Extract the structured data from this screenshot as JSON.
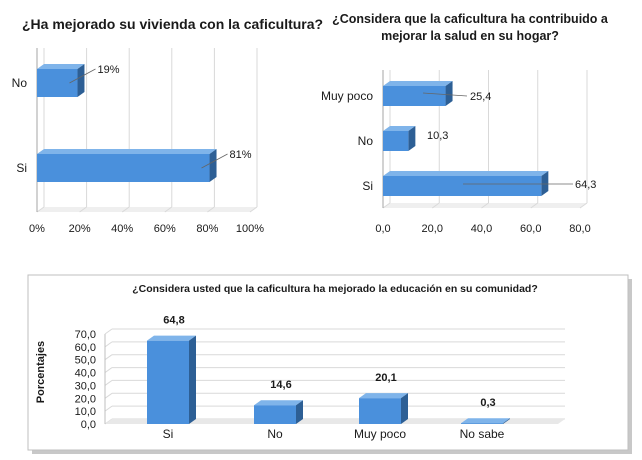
{
  "colors": {
    "bar_front": "#4a90dc",
    "bar_top": "#7fb4ea",
    "bar_side": "#2d5f95",
    "grid": "#d9d9d9",
    "frame_shadow": "#bfbfbf"
  },
  "chart_data": [
    {
      "type": "bar",
      "orientation": "horizontal",
      "title": "¿Ha mejorado su vivienda con la caficultura?",
      "categories": [
        "No",
        "Si"
      ],
      "values": [
        19,
        81
      ],
      "value_labels": [
        "19%",
        "81%"
      ],
      "xlim": [
        0,
        100
      ],
      "x_ticks": [
        "0%",
        "20%",
        "40%",
        "60%",
        "80%",
        "100%"
      ],
      "grid": true
    },
    {
      "type": "bar",
      "orientation": "horizontal",
      "title_lines": [
        "¿Considera que la caficultura ha contribuido a",
        "mejorar la salud en su hogar?"
      ],
      "categories": [
        "Muy poco",
        "No",
        "Si"
      ],
      "values": [
        25.4,
        10.3,
        64.3
      ],
      "value_labels": [
        "25,4",
        "10,3",
        "64,3"
      ],
      "xlim": [
        0,
        80
      ],
      "x_ticks": [
        "0,0",
        "20,0",
        "40,0",
        "60,0",
        "80,0"
      ],
      "grid": true
    },
    {
      "type": "bar",
      "orientation": "vertical",
      "title": "¿Considera usted que la caficultura ha mejorado la educación en su comunidad?",
      "ylabel": "Porcentajes",
      "categories": [
        "Si",
        "No",
        "Muy poco",
        "No sabe"
      ],
      "values": [
        64.8,
        14.6,
        20.1,
        0.3
      ],
      "value_labels": [
        "64,8",
        "14,6",
        "20,1",
        "0,3"
      ],
      "ylim": [
        0,
        70
      ],
      "y_ticks": [
        "0,0",
        "10,0",
        "20,0",
        "30,0",
        "40,0",
        "50,0",
        "60,0",
        "70,0"
      ],
      "grid": true
    }
  ]
}
